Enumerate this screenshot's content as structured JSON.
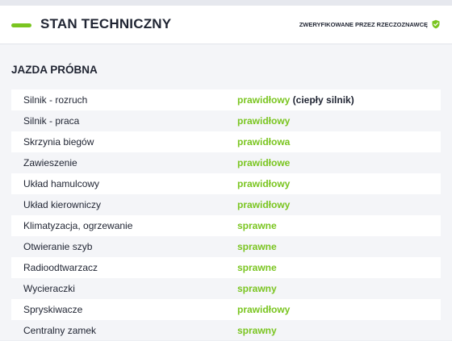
{
  "header": {
    "title": "STAN TECHNICZNY",
    "verified_label": "ZWERYFIKOWANE PRZEZ RZECZOZNAWCĘ",
    "verified_icon": "shield-check-icon"
  },
  "section": {
    "title": "JAZDA PRÓBNA"
  },
  "rows": [
    {
      "label": "Silnik - rozruch",
      "value": "prawidłowy",
      "note": " (ciepły silnik)"
    },
    {
      "label": "Silnik - praca",
      "value": "prawidłowy",
      "note": ""
    },
    {
      "label": "Skrzynia biegów",
      "value": "prawidłowa",
      "note": ""
    },
    {
      "label": "Zawieszenie",
      "value": "prawidłowe",
      "note": ""
    },
    {
      "label": "Układ hamulcowy",
      "value": "prawidłowy",
      "note": ""
    },
    {
      "label": "Układ kierowniczy",
      "value": "prawidłowy",
      "note": ""
    },
    {
      "label": "Klimatyzacja, ogrzewanie",
      "value": "sprawne",
      "note": ""
    },
    {
      "label": "Otwieranie szyb",
      "value": "sprawne",
      "note": ""
    },
    {
      "label": "Radioodtwarzacz",
      "value": "sprawne",
      "note": ""
    },
    {
      "label": "Wycieraczki",
      "value": "sprawny",
      "note": ""
    },
    {
      "label": "Spryskiwacze",
      "value": "prawidłowy",
      "note": ""
    },
    {
      "label": "Centralny zamek",
      "value": "sprawny",
      "note": ""
    }
  ],
  "colors": {
    "accent": "#7ac520",
    "text": "#1f2432",
    "row_alt": "#ffffff"
  }
}
